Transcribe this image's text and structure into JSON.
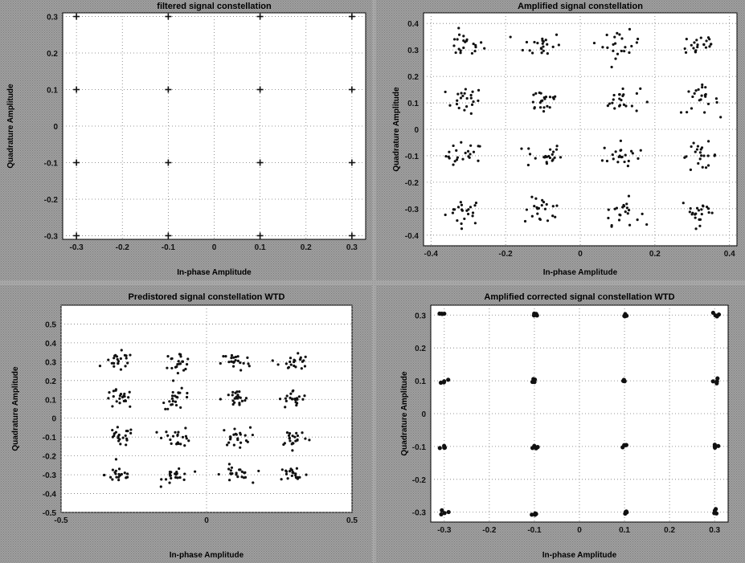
{
  "chart_data": [
    {
      "type": "scatter",
      "title": "filtered signal constellation",
      "xlabel": "In-phase Amplitude",
      "ylabel": "Quadrature Amplitude",
      "xlim": [
        -0.33,
        0.33
      ],
      "ylim": [
        -0.31,
        0.31
      ],
      "xticks": [
        -0.3,
        -0.2,
        -0.1,
        0,
        0.1,
        0.2,
        0.3
      ],
      "xtick_labels": [
        "-0.3",
        "-0.2",
        "-0.1",
        "0",
        "0.1",
        "0.2",
        "0.3"
      ],
      "yticks": [
        -0.3,
        -0.2,
        -0.1,
        0,
        0.1,
        0.2,
        0.3
      ],
      "ytick_labels": [
        "-0.3",
        "-0.2",
        "-0.1",
        "0",
        "0.1",
        "0.2",
        "0.3"
      ],
      "grid": true,
      "ideal_points": [
        -0.3,
        -0.1,
        0.1,
        0.3
      ],
      "spread": 0.0,
      "series": [
        {
          "points": "16-QAM constellation (4x4 grid)"
        }
      ]
    },
    {
      "type": "scatter",
      "title": "Amplified signal constellation",
      "xlabel": "In-phase Amplitude",
      "ylabel": "Quadrature Amplitude",
      "xlim": [
        -0.42,
        0.42
      ],
      "ylim": [
        -0.44,
        0.44
      ],
      "xticks": [
        -0.4,
        -0.2,
        0,
        0.2,
        0.4
      ],
      "xtick_labels": [
        "-0.4",
        "-0.2",
        "0",
        "0.2",
        "0.4"
      ],
      "yticks": [
        -0.4,
        -0.3,
        -0.2,
        -0.1,
        0,
        0.1,
        0.2,
        0.3,
        0.4
      ],
      "ytick_labels": [
        "-0.4",
        "-0.3",
        "-0.2",
        "-0.1",
        "0",
        "0.1",
        "0.2",
        "0.3",
        "0.4"
      ],
      "grid": true,
      "ideal_points": [
        -0.31,
        -0.1,
        0.11,
        0.32
      ],
      "spread": 0.025,
      "series": [
        {
          "points": "16 noisy clusters"
        }
      ]
    },
    {
      "type": "scatter",
      "title": "Predistored signal constellation WTD",
      "xlabel": "In-phase Amplitude",
      "ylabel": "Quadrature Amplitude",
      "xlim": [
        -0.5,
        0.5
      ],
      "ylim": [
        -0.5,
        0.6
      ],
      "xticks": [
        -0.5,
        0,
        0.5
      ],
      "xtick_labels": [
        "-0.5",
        "0",
        "0.5"
      ],
      "yticks": [
        -0.5,
        -0.4,
        -0.3,
        -0.2,
        -0.1,
        0,
        0.1,
        0.2,
        0.3,
        0.4,
        0.5
      ],
      "ytick_labels": [
        "-0.5",
        "-0.4",
        "-0.3",
        "-0.2",
        "-0.1",
        "0",
        "0.1",
        "0.2",
        "0.3",
        "0.4",
        "0.5"
      ],
      "grid": true,
      "ideal_points": [
        -0.3,
        -0.1,
        0.1,
        0.3
      ],
      "spread": 0.025,
      "series": [
        {
          "points": "16 noisy clusters"
        }
      ]
    },
    {
      "type": "scatter",
      "title": "Amplified corrected signal constellation WTD",
      "xlabel": "In-phase Amplitude",
      "ylabel": "Quadrature Amplitude",
      "xlim": [
        -0.33,
        0.33
      ],
      "ylim": [
        -0.33,
        0.33
      ],
      "xticks": [
        -0.3,
        -0.2,
        -0.1,
        0,
        0.1,
        0.2,
        0.3
      ],
      "xtick_labels": [
        "-0.3",
        "-0.2",
        "-0.1",
        "0",
        "0.1",
        "0.2",
        "0.3"
      ],
      "yticks": [
        -0.3,
        -0.2,
        -0.1,
        0,
        0.1,
        0.2,
        0.3
      ],
      "ytick_labels": [
        "-0.3",
        "-0.2",
        "-0.1",
        "0",
        "0.1",
        "0.2",
        "0.3"
      ],
      "grid": true,
      "ideal_points": [
        -0.3,
        -0.1,
        0.1,
        0.3
      ],
      "spread": 0.004,
      "series": [
        {
          "points": "16-QAM constellation (corrected, tight clusters)"
        }
      ]
    }
  ]
}
